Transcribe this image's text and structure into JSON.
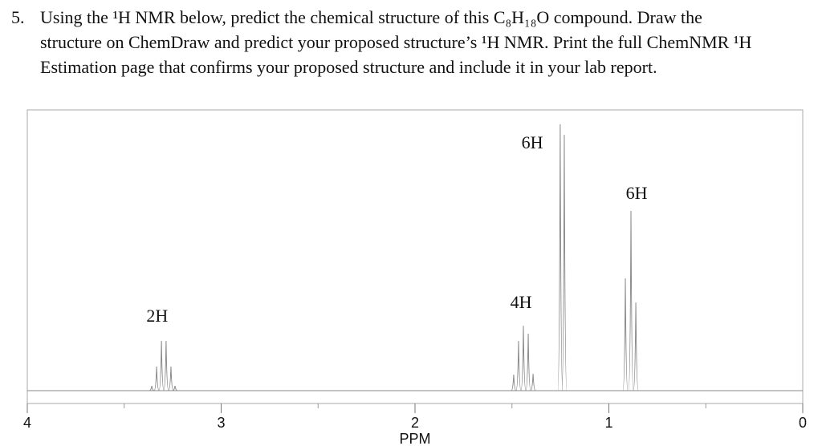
{
  "question": {
    "number": "5.",
    "lines": [
      "Using the ¹H NMR below, predict the chemical structure of this C₈H₁₈O compound. Draw the",
      "structure on ChemDraw and predict your proposed structure’s ¹H NMR. Print the full ChemNMR ¹H",
      "Estimation page that confirms your proposed structure and include it in your lab report."
    ]
  },
  "chart_data": {
    "type": "stick",
    "xlabel": "PPM",
    "xlim": [
      4,
      0
    ],
    "xticks": [
      4,
      3,
      2,
      1,
      0
    ],
    "xminor": [
      3.5,
      2.5,
      1.5,
      0.5
    ],
    "ylim": [
      0,
      100
    ],
    "color": "#888888",
    "peaks": [
      {
        "ppm": 3.358,
        "height": 1.7
      },
      {
        "ppm": 3.333,
        "height": 8.6
      },
      {
        "ppm": 3.308,
        "height": 17.7
      },
      {
        "ppm": 3.284,
        "height": 17.7
      },
      {
        "ppm": 3.259,
        "height": 8.6
      },
      {
        "ppm": 3.238,
        "height": 1.7
      },
      {
        "ppm": 1.491,
        "height": 5.7
      },
      {
        "ppm": 1.466,
        "height": 17.7
      },
      {
        "ppm": 1.441,
        "height": 23.1
      },
      {
        "ppm": 1.416,
        "height": 20.3
      },
      {
        "ppm": 1.391,
        "height": 6
      },
      {
        "ppm": 1.251,
        "height": 94.9
      },
      {
        "ppm": 1.23,
        "height": 91.1
      },
      {
        "ppm": 0.915,
        "height": 40
      },
      {
        "ppm": 0.886,
        "height": 64
      },
      {
        "ppm": 0.861,
        "height": 31.4
      }
    ],
    "annotations": [
      {
        "text": "2H",
        "x": 3.33,
        "y": 26.9
      },
      {
        "text": "4H",
        "x": 1.453,
        "y": 31.7
      },
      {
        "text": "6H",
        "x": 1.395,
        "y": 88.6
      },
      {
        "text": "6H",
        "x": 0.857,
        "y": 70.6
      }
    ]
  }
}
